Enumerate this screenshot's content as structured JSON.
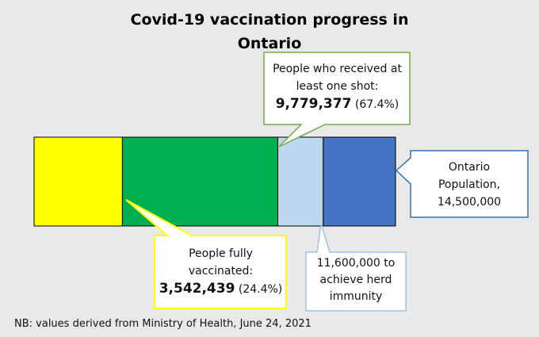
{
  "chart_data": {
    "type": "bar",
    "title": "Covid-19 vaccination progress in Ontario",
    "orientation": "horizontal-stacked",
    "total": 14500000,
    "segments": [
      {
        "name": "People fully vaccinated",
        "value": 3542439,
        "color": "#ffff00"
      },
      {
        "name": "People who received at least one shot",
        "value": 9779377,
        "color": "#00b050"
      },
      {
        "name": "11,600,000 to achieve herd immunity",
        "value": 11600000,
        "color": "#bdd7ee"
      },
      {
        "name": "Ontario Population",
        "value": 14500000,
        "color": "#4472c4"
      }
    ],
    "annotations": {
      "one_shot": {
        "line1": "People who received at",
        "line2": "least one shot:",
        "value": "9,779,377",
        "pct": "(67.4%)"
      },
      "fully": {
        "line1": "People fully",
        "line2": "vaccinated:",
        "value": "3,542,439",
        "pct": "(24.4%)"
      },
      "herd": {
        "line1": "11,600,000 to",
        "line2": "achieve herd",
        "line3": "immunity"
      },
      "population": {
        "line1": "Ontario",
        "line2": "Population,",
        "line3": "14,500,000"
      }
    },
    "footnote": "NB: values derived from Ministry of Health, June 24, 2021"
  }
}
